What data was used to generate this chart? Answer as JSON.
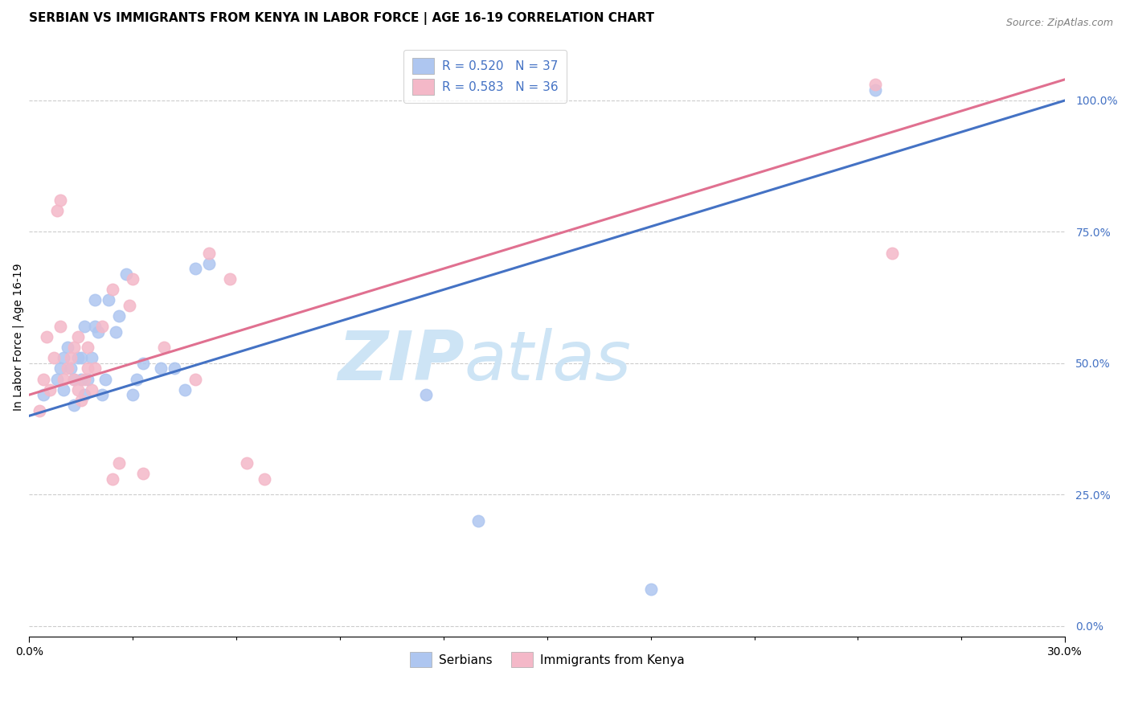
{
  "title": "SERBIAN VS IMMIGRANTS FROM KENYA IN LABOR FORCE | AGE 16-19 CORRELATION CHART",
  "source": "Source: ZipAtlas.com",
  "ylabel": "In Labor Force | Age 16-19",
  "xlabel_ticks_labels": [
    "0.0%",
    "30.0%"
  ],
  "xlabel_ticks_vals": [
    0.0,
    0.3
  ],
  "ylabel_ticks_right": [
    "0.0%",
    "25.0%",
    "50.0%",
    "75.0%",
    "100.0%"
  ],
  "xmin": 0.0,
  "xmax": 0.3,
  "ymin": -0.02,
  "ymax": 1.12,
  "legend_entries": [
    {
      "label": "R = 0.520   N = 37",
      "color": "#aec6f0"
    },
    {
      "label": "R = 0.583   N = 36",
      "color": "#f4b8c8"
    }
  ],
  "legend_bottom": [
    "Serbians",
    "Immigrants from Kenya"
  ],
  "legend_bottom_colors": [
    "#aec6f0",
    "#f4b8c8"
  ],
  "blue_scatter_x": [
    0.004,
    0.008,
    0.009,
    0.01,
    0.01,
    0.011,
    0.012,
    0.013,
    0.013,
    0.014,
    0.015,
    0.015,
    0.016,
    0.016,
    0.017,
    0.018,
    0.019,
    0.019,
    0.02,
    0.021,
    0.022,
    0.023,
    0.025,
    0.026,
    0.028,
    0.03,
    0.031,
    0.033,
    0.038,
    0.042,
    0.045,
    0.048,
    0.052,
    0.115,
    0.13,
    0.18,
    0.245
  ],
  "blue_scatter_y": [
    0.44,
    0.47,
    0.49,
    0.45,
    0.51,
    0.53,
    0.49,
    0.42,
    0.47,
    0.51,
    0.47,
    0.51,
    0.57,
    0.44,
    0.47,
    0.51,
    0.57,
    0.62,
    0.56,
    0.44,
    0.47,
    0.62,
    0.56,
    0.59,
    0.67,
    0.44,
    0.47,
    0.5,
    0.49,
    0.49,
    0.45,
    0.68,
    0.69,
    0.44,
    0.2,
    0.07,
    1.02
  ],
  "pink_scatter_x": [
    0.003,
    0.004,
    0.005,
    0.006,
    0.007,
    0.008,
    0.009,
    0.009,
    0.01,
    0.011,
    0.012,
    0.013,
    0.013,
    0.014,
    0.014,
    0.015,
    0.016,
    0.017,
    0.017,
    0.018,
    0.019,
    0.021,
    0.024,
    0.024,
    0.026,
    0.029,
    0.03,
    0.033,
    0.039,
    0.048,
    0.052,
    0.058,
    0.063,
    0.068,
    0.245,
    0.25
  ],
  "pink_scatter_y": [
    0.41,
    0.47,
    0.55,
    0.45,
    0.51,
    0.79,
    0.57,
    0.81,
    0.47,
    0.49,
    0.51,
    0.47,
    0.53,
    0.45,
    0.55,
    0.43,
    0.47,
    0.49,
    0.53,
    0.45,
    0.49,
    0.57,
    0.64,
    0.28,
    0.31,
    0.61,
    0.66,
    0.29,
    0.53,
    0.47,
    0.71,
    0.66,
    0.31,
    0.28,
    1.03,
    0.71
  ],
  "blue_line_x0": 0.0,
  "blue_line_y0": 0.4,
  "blue_line_x1": 0.3,
  "blue_line_y1": 1.0,
  "pink_line_x0": 0.0,
  "pink_line_y0": 0.44,
  "pink_line_x1": 0.3,
  "pink_line_y1": 1.04,
  "blue_line_color": "#4472c4",
  "pink_line_color": "#e07090",
  "scatter_blue_color": "#aec6f0",
  "scatter_pink_color": "#f4b8c8",
  "scatter_alpha": 0.85,
  "scatter_size": 110,
  "grid_color": "#cccccc",
  "watermark_zip": "ZIP",
  "watermark_atlas": "atlas",
  "watermark_color": "#cde4f5",
  "background_color": "#ffffff",
  "title_fontsize": 11,
  "axis_label_fontsize": 10,
  "tick_fontsize": 10,
  "legend_fontsize": 11,
  "source_fontsize": 9
}
